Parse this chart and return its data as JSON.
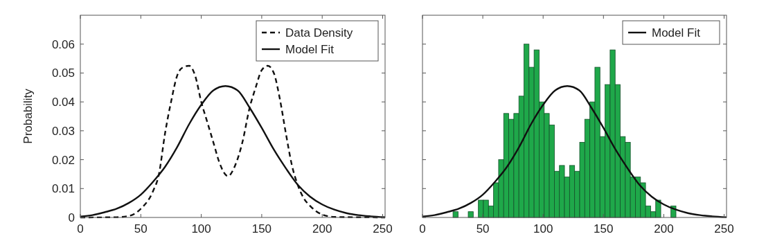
{
  "chart_data": [
    {
      "type": "line",
      "ylabel": "Probability",
      "xlim": [
        0,
        252
      ],
      "xticks": [
        0,
        50,
        100,
        150,
        200,
        250
      ],
      "ylim": [
        0,
        0.07
      ],
      "yticks": [
        0,
        0.01,
        0.02,
        0.03,
        0.04,
        0.05,
        0.06
      ],
      "grid": false,
      "legend": "top right",
      "series": [
        {
          "name": "Data Density",
          "color": "#111111",
          "line_style": "dashed",
          "x": [
            0,
            30,
            40,
            50,
            60,
            65,
            70,
            75,
            80,
            85,
            90,
            95,
            100,
            105,
            110,
            115,
            122,
            128,
            134,
            140,
            145,
            150,
            155,
            160,
            165,
            170,
            175,
            180,
            185,
            190,
            200,
            210,
            252
          ],
          "values": [
            0,
            0.0001,
            0.0005,
            0.003,
            0.009,
            0.015,
            0.029,
            0.04,
            0.049,
            0.052,
            0.0525,
            0.049,
            0.04,
            0.033,
            0.026,
            0.019,
            0.0143,
            0.018,
            0.026,
            0.038,
            0.045,
            0.051,
            0.0525,
            0.05,
            0.041,
            0.029,
            0.018,
            0.011,
            0.0065,
            0.004,
            0.001,
            0.0002,
            0
          ]
        },
        {
          "name": "Model Fit",
          "color": "#111111",
          "line_style": "solid",
          "x": [
            0,
            10,
            20,
            30,
            40,
            50,
            60,
            70,
            80,
            90,
            100,
            110,
            120,
            130,
            140,
            150,
            160,
            170,
            180,
            190,
            200,
            210,
            220,
            230,
            240,
            252
          ],
          "values": [
            0.0003,
            0.0008,
            0.0018,
            0.003,
            0.005,
            0.0079,
            0.0123,
            0.0175,
            0.0243,
            0.0323,
            0.039,
            0.044,
            0.0455,
            0.044,
            0.038,
            0.031,
            0.0235,
            0.017,
            0.0112,
            0.0072,
            0.0045,
            0.0027,
            0.0015,
            0.0008,
            0.0004,
            0.0001
          ]
        }
      ]
    },
    {
      "type": "histogram",
      "xlim": [
        0,
        252
      ],
      "xticks": [
        0,
        50,
        100,
        150,
        200,
        250
      ],
      "ylim": [
        0,
        0.07
      ],
      "yticks": [
        0,
        0.01,
        0.02,
        0.03,
        0.04,
        0.05,
        0.06
      ],
      "grid": false,
      "legend": "top right",
      "tick_labels": "x",
      "series": [
        {
          "color": "#1fa84a",
          "bins": [
            25.3,
            29.5,
            33.7,
            37.9,
            42.1,
            46.3,
            50.5,
            54.7,
            58.9,
            63.1,
            67.3,
            71.5,
            75.7,
            79.9,
            84.1,
            88.3,
            92.5,
            96.7,
            100.9,
            105.1,
            109.3,
            113.5,
            117.7,
            121.9,
            126.1,
            130.3,
            134.5,
            138.7,
            142.9,
            147.1,
            151.3,
            155.5,
            159.7,
            163.9,
            168.1,
            172.3,
            176.5,
            180.7,
            184.9,
            189.1,
            193.3,
            197.5,
            201.7,
            205.9,
            210.1
          ],
          "values": [
            0.002,
            0,
            0,
            0.002,
            0,
            0.006,
            0.006,
            0.004,
            0.012,
            0.02,
            0.036,
            0.034,
            0.036,
            0.042,
            0.06,
            0.052,
            0.058,
            0.04,
            0.036,
            0.032,
            0.016,
            0.018,
            0.014,
            0.018,
            0.016,
            0.026,
            0.034,
            0.04,
            0.052,
            0.028,
            0.046,
            0.058,
            0.046,
            0.028,
            0.026,
            0.014,
            0.014,
            0.012,
            0.004,
            0.002,
            0.006,
            0,
            0,
            0.004
          ]
        },
        {
          "type": "line",
          "name": "Model Fit",
          "color": "#111111",
          "line_style": "solid",
          "x": [
            0,
            10,
            20,
            30,
            40,
            50,
            60,
            70,
            80,
            90,
            100,
            110,
            120,
            130,
            140,
            150,
            160,
            170,
            180,
            190,
            200,
            210,
            220,
            230,
            240,
            252
          ],
          "values": [
            0.0003,
            0.0008,
            0.0018,
            0.003,
            0.005,
            0.0079,
            0.0123,
            0.0175,
            0.0243,
            0.0323,
            0.039,
            0.044,
            0.0455,
            0.044,
            0.038,
            0.031,
            0.0235,
            0.017,
            0.0112,
            0.0072,
            0.0045,
            0.0027,
            0.0015,
            0.0008,
            0.0004,
            0.0001
          ]
        }
      ]
    }
  ]
}
